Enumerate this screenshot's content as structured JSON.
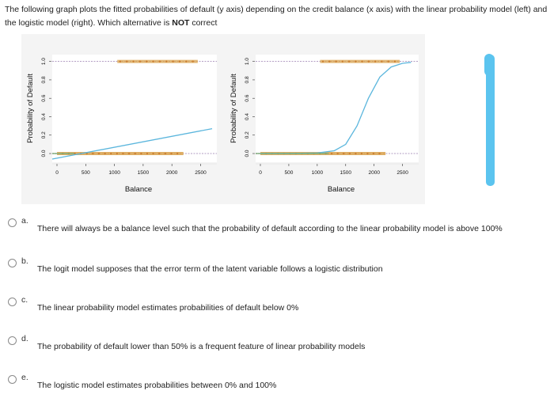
{
  "question": {
    "text_before": "The following graph plots the fitted probabilities of default (y axis) depending on the credit balance (x axis) with the linear probability model (left) and the logistic model (right). Which alternative is ",
    "emphasis": "NOT",
    "text_after": " correct"
  },
  "chart_data": [
    {
      "type": "scatter",
      "title": "",
      "xlabel": "Balance",
      "ylabel": "Probability of Default",
      "x_ticks": [
        "0",
        "500",
        "1000",
        "1500",
        "2000",
        "2500"
      ],
      "y_ticks": [
        "0.0",
        "0.2",
        "0.4",
        "0.6",
        "0.8",
        "1.0"
      ],
      "xlim": [
        0,
        2700
      ],
      "ylim": [
        -0.06,
        1.04
      ],
      "fitted_line": {
        "x": [
          -100,
          2700
        ],
        "y": [
          -0.06,
          0.27
        ]
      },
      "reference_lines_y": [
        0,
        1
      ],
      "colors": {
        "line": "#5bb6dd",
        "points": "#d9a14a",
        "reference": "#9a7fb0"
      }
    },
    {
      "type": "scatter",
      "title": "",
      "xlabel": "Balance",
      "ylabel": "Probability of Default",
      "x_ticks": [
        "0",
        "500",
        "1000",
        "1500",
        "2000",
        "2500"
      ],
      "y_ticks": [
        "0.0",
        "0.2",
        "0.4",
        "0.6",
        "0.8",
        "1.0"
      ],
      "xlim": [
        0,
        2700
      ],
      "ylim": [
        -0.06,
        1.04
      ],
      "fitted_curve": {
        "x": [
          0,
          500,
          1000,
          1300,
          1500,
          1700,
          1900,
          2100,
          2300,
          2500,
          2650
        ],
        "y": [
          0.0,
          0.0,
          0.006,
          0.03,
          0.1,
          0.3,
          0.6,
          0.83,
          0.94,
          0.98,
          0.99
        ]
      },
      "reference_lines_y": [
        0,
        1
      ],
      "colors": {
        "line": "#5bb6dd",
        "points": "#d9a14a",
        "reference": "#9a7fb0"
      }
    }
  ],
  "options": [
    {
      "letter": "a.",
      "text": "There will always be a balance level such that the probability of default according to the linear probability model is above 100%"
    },
    {
      "letter": "b.",
      "text": "The logit model supposes that the error term of the latent variable follows a logistic distribution"
    },
    {
      "letter": "c.",
      "text": "The linear probability model estimates probabilities of default below 0%"
    },
    {
      "letter": "d.",
      "text": "The probability of default lower than 50% is a frequent feature of linear probability models"
    },
    {
      "letter": "e.",
      "text": "The logistic model estimates probabilities between 0% and 100%"
    }
  ]
}
